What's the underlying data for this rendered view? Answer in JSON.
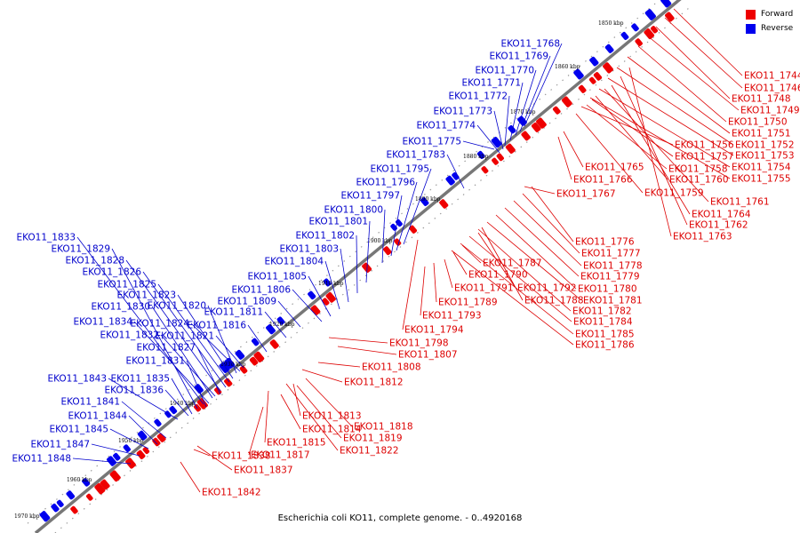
{
  "caption": "Escherichia coli KO11, complete genome. - 0..4920168",
  "legend": [
    {
      "label": "Forward",
      "color": "#ee0000"
    },
    {
      "label": "Reverse",
      "color": "#0000ee"
    }
  ],
  "colors": {
    "forward": "#ee0000",
    "reverse": "#0000ee",
    "backbone": "#888888"
  },
  "ticks": [
    "1850 kbp",
    "1860 kbp",
    "1870 kbp",
    "1880 kbp",
    "1890 kbp",
    "1900 kbp",
    "1910 kbp",
    "1920 kbp",
    "1930 kbp",
    "1940 kbp",
    "1950 kbp",
    "1960 kbp",
    "1970 kbp"
  ],
  "forward_labels": [
    "EKO11_1744",
    "EKO11_1746",
    "EKO11_1748",
    "EKO11_1749",
    "EKO11_1750",
    "EKO11_1751",
    "EKO11_1752",
    "EKO11_1753",
    "EKO11_1754",
    "EKO11_1755",
    "EKO11_1756",
    "EKO11_1757",
    "EKO11_1758",
    "EKO11_1760",
    "EKO11_1761",
    "EKO11_1759",
    "EKO11_1764",
    "EKO11_1762",
    "EKO11_1763",
    "EKO11_1765",
    "EKO11_1766",
    "EKO11_1767",
    "EKO11_1776",
    "EKO11_1777",
    "EKO11_1778",
    "EKO11_1779",
    "EKO11_1780",
    "EKO11_1781",
    "EKO11_1782",
    "EKO11_1784",
    "EKO11_1785",
    "EKO11_1786",
    "EKO11_1787",
    "EKO11_1790",
    "EKO11_1791",
    "EKO11_1792",
    "EKO11_1788",
    "EKO11_1789",
    "EKO11_1793",
    "EKO11_1794",
    "EKO11_1798",
    "EKO11_1807",
    "EKO11_1808",
    "EKO11_1812",
    "EKO11_1813",
    "EKO11_1818",
    "EKO11_1814",
    "EKO11_1819",
    "EKO11_1815",
    "EKO11_1822",
    "EKO11_1817",
    "EKO11_1837",
    "EKO11_1838",
    "EKO11_1842"
  ],
  "reverse_labels": [
    "EKO11_1768",
    "EKO11_1769",
    "EKO11_1770",
    "EKO11_1771",
    "EKO11_1772",
    "EKO11_1773",
    "EKO11_1774",
    "EKO11_1775",
    "EKO11_1783",
    "EKO11_1795",
    "EKO11_1796",
    "EKO11_1797",
    "EKO11_1800",
    "EKO11_1801",
    "EKO11_1802",
    "EKO11_1803",
    "EKO11_1804",
    "EKO11_1805",
    "EKO11_1806",
    "EKO11_1809",
    "EKO11_1811",
    "EKO11_1816",
    "EKO11_1833",
    "EKO11_1829",
    "EKO11_1828",
    "EKO11_1826",
    "EKO11_1825",
    "EKO11_1823",
    "EKO11_1830",
    "EKO11_1820",
    "EKO11_1834",
    "EKO11_1824",
    "EKO11_1832",
    "EKO11_1821",
    "EKO11_1827",
    "EKO11_1831",
    "EKO11_1843",
    "EKO11_1835",
    "EKO11_1836",
    "EKO11_1841",
    "EKO11_1844",
    "EKO11_1845",
    "EKO11_1847",
    "EKO11_1848"
  ]
}
